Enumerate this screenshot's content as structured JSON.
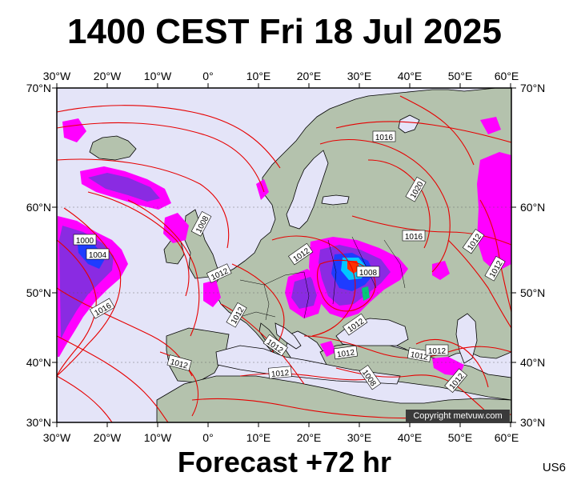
{
  "title": "1400 CEST Fri 18 Jul 2025",
  "footer": "Forecast +72 hr",
  "model_code": "US6",
  "copyright": "Copyright metvuw.com",
  "axes": {
    "lon_labels": [
      "30°W",
      "20°W",
      "10°W",
      "0°",
      "10°E",
      "20°E",
      "30°E",
      "40°E",
      "50°E",
      "60°E"
    ],
    "lat_labels": [
      "70°N",
      "60°N",
      "50°N",
      "40°N",
      "30°N"
    ]
  },
  "isobar_labels": [
    "1016",
    "1020",
    "1008",
    "1016",
    "1012",
    "1000",
    "1004",
    "1012",
    "1012",
    "1008",
    "1012",
    "1012",
    "1016",
    "1012",
    "1012",
    "1012",
    "1012",
    "1012",
    "1012",
    "1012",
    "1008",
    "1012"
  ],
  "colors": {
    "sea": "#e4e4f8",
    "land": "#b4c2ad",
    "isobar": "#e60000",
    "precip_light": "#ff00ff",
    "precip_medium": "#8a2be2",
    "precip_heavy": "#1e3cff"
  }
}
